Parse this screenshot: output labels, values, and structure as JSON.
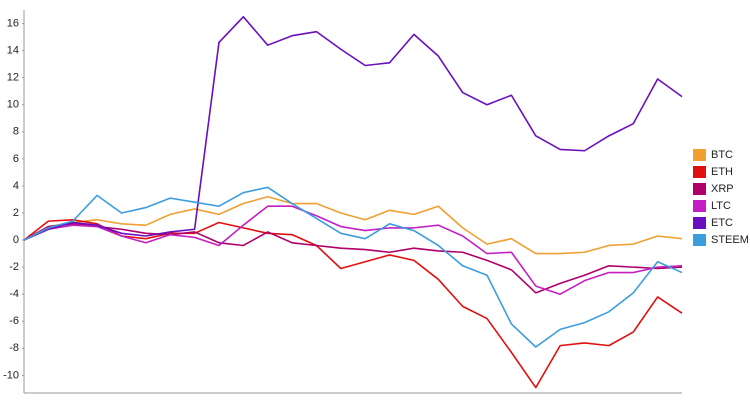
{
  "chart_data": {
    "type": "line",
    "categories": [
      null,
      null,
      null,
      null,
      null,
      null,
      null,
      null,
      null,
      null,
      null,
      null,
      null,
      null,
      null,
      null,
      null,
      null,
      null,
      null,
      null,
      null,
      null,
      null,
      null,
      null,
      null,
      null
    ],
    "series": [
      {
        "name": "BTC",
        "color": "#f0a030",
        "values": [
          0,
          1.0,
          1.3,
          1.5,
          1.2,
          1.1,
          1.9,
          2.3,
          1.9,
          2.7,
          3.2,
          2.7,
          2.7,
          2.0,
          1.5,
          2.2,
          1.9,
          2.5,
          0.9,
          -0.3,
          0.1,
          -1.0,
          -1.0,
          -0.9,
          -0.4,
          -0.3,
          0.3,
          0.1
        ]
      },
      {
        "name": "ETH",
        "color": "#e01010",
        "values": [
          0,
          1.4,
          1.5,
          1.2,
          0.3,
          0.1,
          0.5,
          0.5,
          1.3,
          0.9,
          0.5,
          0.4,
          -0.4,
          -2.1,
          -1.6,
          -1.1,
          -1.5,
          -2.9,
          -4.9,
          -5.8,
          -8.3,
          -10.9,
          -7.8,
          -7.6,
          -7.8,
          -6.8,
          -4.2,
          -5.4
        ]
      },
      {
        "name": "XRP",
        "color": "#b0006a",
        "values": [
          0,
          1.0,
          1.2,
          1.0,
          0.8,
          0.5,
          0.4,
          0.6,
          -0.2,
          -0.4,
          0.6,
          -0.2,
          -0.4,
          -0.6,
          -0.7,
          -0.9,
          -0.6,
          -0.8,
          -0.9,
          -1.5,
          -2.2,
          -3.9,
          -3.2,
          -2.6,
          -1.9,
          -2.0,
          -2.1,
          -2.0
        ]
      },
      {
        "name": "LTC",
        "color": "#c41ec4",
        "values": [
          0,
          0.8,
          1.1,
          1.0,
          0.3,
          -0.2,
          0.4,
          0.2,
          -0.4,
          1.1,
          2.5,
          2.5,
          1.8,
          1.0,
          0.7,
          0.9,
          0.9,
          1.1,
          0.3,
          -1.0,
          -0.9,
          -3.4,
          -4.0,
          -3.0,
          -2.4,
          -2.4,
          -2.0,
          -1.9
        ]
      },
      {
        "name": "ETC",
        "color": "#6a0fbd",
        "values": [
          0,
          0.8,
          1.3,
          1.1,
          0.5,
          0.3,
          0.6,
          0.8,
          14.6,
          16.5,
          14.4,
          15.1,
          15.4,
          14.1,
          12.9,
          13.1,
          15.2,
          13.6,
          10.9,
          10.0,
          10.7,
          7.7,
          6.7,
          6.6,
          7.7,
          8.6,
          11.9,
          10.6
        ]
      },
      {
        "name": "STEEM",
        "color": "#3b9de0",
        "values": [
          0,
          0.9,
          1.4,
          3.3,
          2.0,
          2.4,
          3.1,
          2.8,
          2.5,
          3.5,
          3.9,
          2.7,
          1.6,
          0.5,
          0.1,
          1.2,
          0.7,
          -0.4,
          -1.9,
          -2.6,
          -6.2,
          -7.9,
          -6.6,
          -6.1,
          -5.3,
          -3.9,
          -1.6,
          -2.4
        ]
      }
    ],
    "ylim": [
      -11.3,
      17
    ],
    "yticks": [
      -10,
      -8,
      -6,
      -4,
      -2,
      0,
      2,
      4,
      6,
      8,
      10,
      12,
      14,
      16
    ],
    "grid": false,
    "legend": "right"
  }
}
